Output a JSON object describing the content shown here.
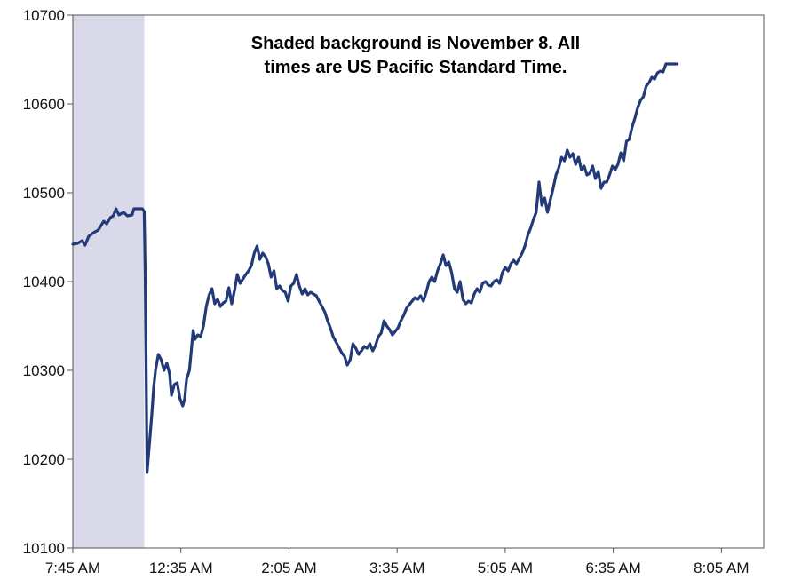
{
  "chart_data": {
    "type": "line",
    "title": "",
    "xlabel": "",
    "ylabel": "",
    "ylim": [
      10100,
      10700
    ],
    "yticks": [
      10100,
      10200,
      10300,
      10400,
      10500,
      10600,
      10700
    ],
    "xlim": [
      0,
      735
    ],
    "xticks": [
      {
        "t": 0,
        "label": "7:45 AM"
      },
      {
        "t": 115,
        "label": "12:35 AM"
      },
      {
        "t": 230,
        "label": "2:05 AM"
      },
      {
        "t": 345,
        "label": "3:35 AM"
      },
      {
        "t": 460,
        "label": "5:05 AM"
      },
      {
        "t": 575,
        "label": "6:35 AM"
      },
      {
        "t": 690,
        "label": "8:05 AM"
      }
    ],
    "shaded_region": {
      "from": 0,
      "to": 76,
      "color": "#d9d9ea",
      "meaning": "November 8"
    },
    "annotation": {
      "line1": "Shaded background is November 8. All",
      "line2": "times are US Pacific Standard Time."
    },
    "grid": false,
    "series": [
      {
        "name": "",
        "color": "#223a78",
        "points": [
          [
            0,
            10442
          ],
          [
            5,
            10443
          ],
          [
            10,
            10446
          ],
          [
            13,
            10441
          ],
          [
            17,
            10451
          ],
          [
            22,
            10455
          ],
          [
            27,
            10458
          ],
          [
            30,
            10463
          ],
          [
            33,
            10468
          ],
          [
            36,
            10465
          ],
          [
            40,
            10472
          ],
          [
            43,
            10474
          ],
          [
            46,
            10482
          ],
          [
            49,
            10475
          ],
          [
            54,
            10478
          ],
          [
            58,
            10474
          ],
          [
            63,
            10475
          ],
          [
            65,
            10482
          ],
          [
            70,
            10482
          ],
          [
            74,
            10482
          ],
          [
            76,
            10479
          ],
          [
            77,
            10410
          ],
          [
            78,
            10300
          ],
          [
            79,
            10185
          ],
          [
            81,
            10210
          ],
          [
            84,
            10250
          ],
          [
            86,
            10280
          ],
          [
            88,
            10300
          ],
          [
            91,
            10318
          ],
          [
            94,
            10312
          ],
          [
            97,
            10300
          ],
          [
            100,
            10308
          ],
          [
            103,
            10296
          ],
          [
            105,
            10272
          ],
          [
            108,
            10284
          ],
          [
            111,
            10286
          ],
          [
            114,
            10268
          ],
          [
            117,
            10260
          ],
          [
            119,
            10268
          ],
          [
            121,
            10290
          ],
          [
            124,
            10300
          ],
          [
            126,
            10322
          ],
          [
            128,
            10345
          ],
          [
            130,
            10335
          ],
          [
            133,
            10340
          ],
          [
            136,
            10338
          ],
          [
            139,
            10350
          ],
          [
            142,
            10372
          ],
          [
            145,
            10385
          ],
          [
            148,
            10392
          ],
          [
            151,
            10375
          ],
          [
            154,
            10380
          ],
          [
            157,
            10372
          ],
          [
            160,
            10376
          ],
          [
            163,
            10378
          ],
          [
            166,
            10393
          ],
          [
            169,
            10375
          ],
          [
            172,
            10390
          ],
          [
            175,
            10408
          ],
          [
            178,
            10398
          ],
          [
            181,
            10403
          ],
          [
            184,
            10408
          ],
          [
            187,
            10412
          ],
          [
            190,
            10418
          ],
          [
            193,
            10432
          ],
          [
            196,
            10440
          ],
          [
            199,
            10425
          ],
          [
            202,
            10432
          ],
          [
            205,
            10428
          ],
          [
            208,
            10420
          ],
          [
            211,
            10405
          ],
          [
            214,
            10412
          ],
          [
            217,
            10392
          ],
          [
            220,
            10395
          ],
          [
            223,
            10390
          ],
          [
            226,
            10388
          ],
          [
            229,
            10378
          ],
          [
            232,
            10395
          ],
          [
            235,
            10398
          ],
          [
            238,
            10408
          ],
          [
            241,
            10395
          ],
          [
            244,
            10386
          ],
          [
            247,
            10392
          ],
          [
            250,
            10385
          ],
          [
            253,
            10388
          ],
          [
            256,
            10386
          ],
          [
            259,
            10384
          ],
          [
            262,
            10378
          ],
          [
            265,
            10372
          ],
          [
            268,
            10366
          ],
          [
            271,
            10356
          ],
          [
            274,
            10348
          ],
          [
            277,
            10338
          ],
          [
            280,
            10332
          ],
          [
            283,
            10326
          ],
          [
            286,
            10320
          ],
          [
            289,
            10316
          ],
          [
            292,
            10306
          ],
          [
            295,
            10312
          ],
          [
            298,
            10330
          ],
          [
            301,
            10325
          ],
          [
            304,
            10318
          ],
          [
            307,
            10322
          ],
          [
            310,
            10327
          ],
          [
            313,
            10325
          ],
          [
            316,
            10330
          ],
          [
            319,
            10322
          ],
          [
            322,
            10328
          ],
          [
            325,
            10338
          ],
          [
            328,
            10342
          ],
          [
            331,
            10356
          ],
          [
            334,
            10350
          ],
          [
            337,
            10346
          ],
          [
            340,
            10340
          ],
          [
            343,
            10344
          ],
          [
            346,
            10348
          ],
          [
            349,
            10356
          ],
          [
            352,
            10362
          ],
          [
            355,
            10370
          ],
          [
            358,
            10374
          ],
          [
            361,
            10378
          ],
          [
            364,
            10382
          ],
          [
            367,
            10380
          ],
          [
            370,
            10384
          ],
          [
            373,
            10378
          ],
          [
            376,
            10388
          ],
          [
            379,
            10400
          ],
          [
            382,
            10405
          ],
          [
            385,
            10400
          ],
          [
            388,
            10412
          ],
          [
            391,
            10420
          ],
          [
            394,
            10430
          ],
          [
            397,
            10418
          ],
          [
            400,
            10422
          ],
          [
            403,
            10410
          ],
          [
            406,
            10392
          ],
          [
            409,
            10388
          ],
          [
            412,
            10400
          ],
          [
            415,
            10380
          ],
          [
            418,
            10375
          ],
          [
            421,
            10378
          ],
          [
            424,
            10376
          ],
          [
            427,
            10386
          ],
          [
            430,
            10392
          ],
          [
            433,
            10388
          ],
          [
            436,
            10398
          ],
          [
            439,
            10400
          ],
          [
            442,
            10396
          ],
          [
            445,
            10395
          ],
          [
            448,
            10400
          ],
          [
            451,
            10402
          ],
          [
            454,
            10398
          ],
          [
            457,
            10410
          ],
          [
            460,
            10416
          ],
          [
            463,
            10412
          ],
          [
            466,
            10420
          ],
          [
            469,
            10424
          ],
          [
            472,
            10420
          ],
          [
            475,
            10426
          ],
          [
            478,
            10432
          ],
          [
            481,
            10440
          ],
          [
            484,
            10452
          ],
          [
            487,
            10460
          ],
          [
            490,
            10470
          ],
          [
            493,
            10478
          ],
          [
            496,
            10512
          ],
          [
            499,
            10486
          ],
          [
            502,
            10494
          ],
          [
            505,
            10478
          ],
          [
            508,
            10492
          ],
          [
            511,
            10505
          ],
          [
            514,
            10520
          ],
          [
            517,
            10528
          ],
          [
            520,
            10540
          ],
          [
            523,
            10536
          ],
          [
            526,
            10548
          ],
          [
            529,
            10540
          ],
          [
            532,
            10544
          ],
          [
            535,
            10532
          ],
          [
            538,
            10540
          ],
          [
            541,
            10526
          ],
          [
            544,
            10530
          ],
          [
            547,
            10520
          ],
          [
            550,
            10522
          ],
          [
            553,
            10530
          ],
          [
            556,
            10516
          ],
          [
            559,
            10524
          ],
          [
            562,
            10505
          ],
          [
            565,
            10512
          ],
          [
            568,
            10512
          ],
          [
            571,
            10520
          ],
          [
            574,
            10530
          ],
          [
            577,
            10526
          ],
          [
            580,
            10532
          ],
          [
            583,
            10545
          ],
          [
            586,
            10536
          ],
          [
            589,
            10558
          ],
          [
            592,
            10560
          ],
          [
            595,
            10574
          ],
          [
            598,
            10584
          ],
          [
            601,
            10596
          ],
          [
            604,
            10604
          ],
          [
            607,
            10608
          ],
          [
            610,
            10620
          ],
          [
            613,
            10624
          ],
          [
            616,
            10630
          ],
          [
            619,
            10628
          ],
          [
            622,
            10635
          ],
          [
            625,
            10637
          ],
          [
            628,
            10636
          ],
          [
            631,
            10645
          ],
          [
            634,
            10645
          ],
          [
            638,
            10645
          ],
          [
            643,
            10645
          ]
        ]
      }
    ]
  }
}
